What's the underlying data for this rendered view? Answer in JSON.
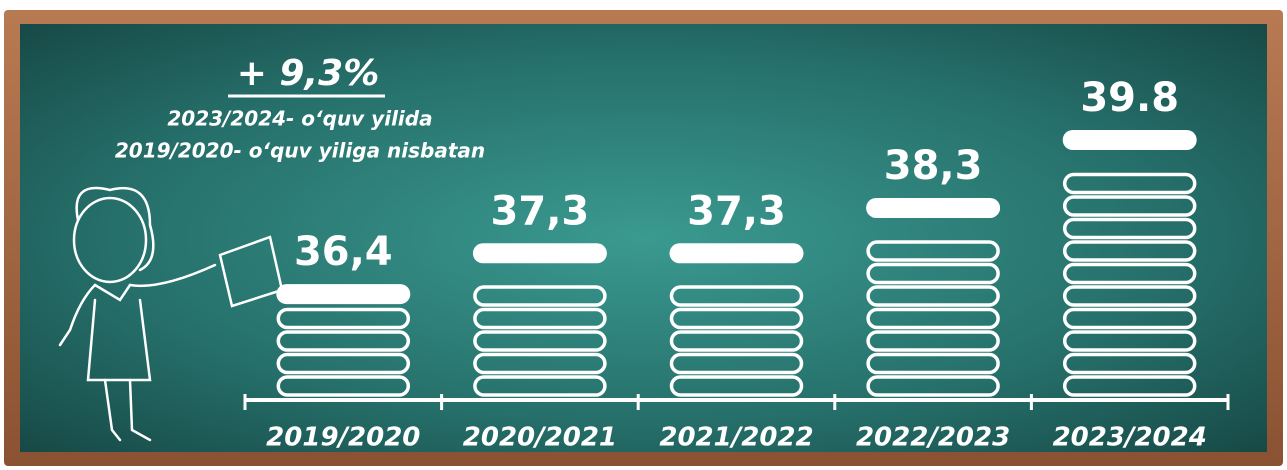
{
  "chart_data": {
    "type": "bar",
    "annotations": [
      "+ 9,3%",
      "2023/2024- o‘quv yilida",
      "2019/2020- o‘quv yiliga nisbatan"
    ],
    "categories": [
      "2019/2020",
      "2020/2021",
      "2021/2022",
      "2022/2023",
      "2023/2024"
    ],
    "values": [
      36.4,
      37.3,
      37.3,
      38.3,
      39.8
    ],
    "value_labels": [
      "36,4",
      "37,3",
      "37,3",
      "38,3",
      "39.8"
    ],
    "color": "#ffffff"
  }
}
